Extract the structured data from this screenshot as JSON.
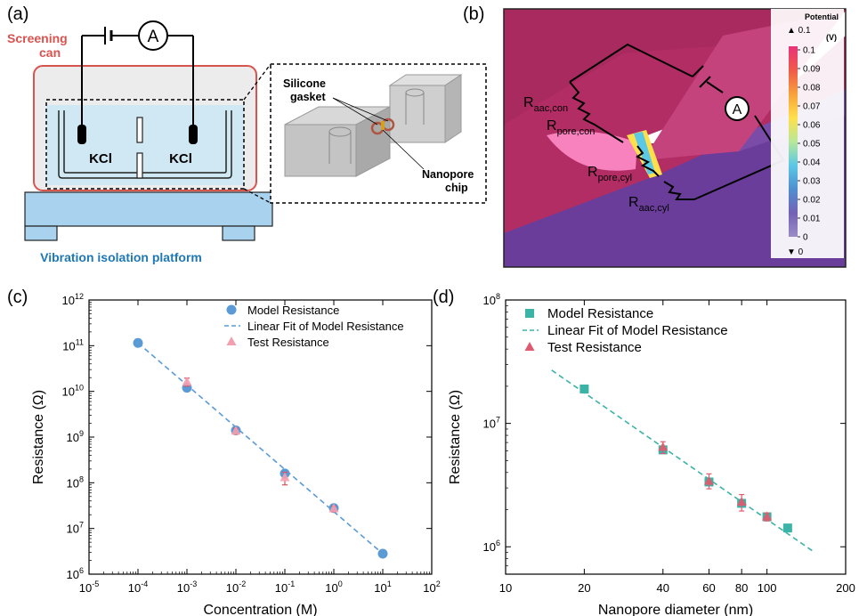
{
  "panels": {
    "a": {
      "label": "(a)",
      "can_label_1": "Screening",
      "can_label_2": "can",
      "ammeter": "A",
      "electrolyte_left": "KCl",
      "electrolyte_right": "KCl",
      "gasket_label_1": "Silicone",
      "gasket_label_2": "gasket",
      "chip_label_1": "Nanopore",
      "chip_label_2": "chip",
      "platform_label": "Vibration isolation platform",
      "colors": {
        "can": "#d9534f",
        "bath": "#cfe8f3",
        "platform": "#a9d2ee",
        "platform_text": "#1f77b4"
      }
    },
    "b": {
      "label": "(b)",
      "ammeter": "A",
      "resistors": [
        {
          "main": "R",
          "sub": "aac,con"
        },
        {
          "main": "R",
          "sub": "pore,con"
        },
        {
          "main": "R",
          "sub": "pore,cyl"
        },
        {
          "main": "R",
          "sub": "aac,cyl"
        }
      ],
      "colorbar": {
        "title_1": "Potential",
        "title_2": "(V)",
        "max_marker": "▲ 0.1",
        "min_marker": "▼ 0",
        "ticks": [
          "0.1",
          "0.09",
          "0.08",
          "0.07",
          "0.06",
          "0.05",
          "0.04",
          "0.03",
          "0.02",
          "0.01",
          "0"
        ],
        "gradient": [
          "#e8337a",
          "#f05a4a",
          "#f7a13a",
          "#ffe04a",
          "#b9e89a",
          "#5bc8e6",
          "#4f8fd0",
          "#7461b5",
          "#9b8cc6"
        ]
      },
      "colors": {
        "upper": "#b32d65",
        "lower": "#6a3d9a",
        "wedge": "#c4437c",
        "tip": "#ff8cc8"
      }
    }
  },
  "chart_data": [
    {
      "panel": "(c)",
      "type": "scatter",
      "xlabel": "Concentration (M)",
      "ylabel": "Resistance (Ω)",
      "xscale": "log",
      "yscale": "log",
      "xlim": [
        1e-05,
        100
      ],
      "ylim": [
        1000000.0,
        1000000000000.0
      ],
      "x_tick_labels": [
        {
          "base": "10",
          "exp": "-5"
        },
        {
          "base": "10",
          "exp": "-4"
        },
        {
          "base": "10",
          "exp": "-3"
        },
        {
          "base": "10",
          "exp": "-2"
        },
        {
          "base": "10",
          "exp": "-1"
        },
        {
          "base": "10",
          "exp": "0"
        },
        {
          "base": "10",
          "exp": "1"
        },
        {
          "base": "10",
          "exp": "2"
        }
      ],
      "y_tick_labels": [
        {
          "base": "10",
          "exp": "6"
        },
        {
          "base": "10",
          "exp": "7"
        },
        {
          "base": "10",
          "exp": "8"
        },
        {
          "base": "10",
          "exp": "9"
        },
        {
          "base": "10",
          "exp": "10"
        },
        {
          "base": "10",
          "exp": "11"
        },
        {
          "base": "10",
          "exp": "12"
        }
      ],
      "legend_position": "top-right",
      "series": [
        {
          "name": "Model Resistance",
          "marker": "circle",
          "color": "#5b9bd5",
          "x": [
            0.0001,
            0.001,
            0.01,
            0.1,
            1,
            10
          ],
          "y": [
            115000000000.0,
            12000000000.0,
            1400000000.0,
            160000000.0,
            28000000.0,
            2800000.0
          ]
        },
        {
          "name": "Linear Fit of Model Resistance",
          "style": "dashed",
          "color": "#5b9bd5",
          "x": [
            0.0001,
            10
          ],
          "y": [
            115000000000.0,
            2800000.0
          ]
        },
        {
          "name": "Test Resistance",
          "marker": "triangle",
          "color": "#f2a0b0",
          "error_color": "#e05060",
          "x": [
            0.001,
            0.01,
            0.1,
            1
          ],
          "y": [
            16000000000.0,
            1350000000.0,
            130000000.0,
            27000000.0
          ],
          "err_low": [
            13000000000.0,
            1150000000.0,
            90000000.0,
            23000000.0
          ],
          "err_high": [
            19500000000.0,
            1550000000.0,
            170000000.0,
            31000000.0
          ]
        }
      ]
    },
    {
      "panel": "(d)",
      "type": "scatter",
      "xlabel": "Nanopore diameter (nm)",
      "ylabel": "Resistance (Ω)",
      "xscale": "log",
      "yscale": "log",
      "xlim": [
        10,
        200
      ],
      "ylim": [
        600000,
        100000000
      ],
      "x_ticks": [
        10,
        20,
        40,
        60,
        80,
        100,
        200
      ],
      "x_tick_labels": [
        "10",
        "20",
        "40",
        "60",
        "80",
        "100",
        "200"
      ],
      "y_ticks": [
        1000000,
        10000000,
        100000000
      ],
      "y_tick_labels": [
        {
          "base": "10",
          "exp": "6"
        },
        {
          "base": "10",
          "exp": "7"
        },
        {
          "base": "10",
          "exp": "8"
        }
      ],
      "legend_position": "top-left",
      "series": [
        {
          "name": "Model Resistance",
          "marker": "square",
          "color": "#3bb3a6",
          "x": [
            20,
            40,
            60,
            80,
            100,
            120
          ],
          "y": [
            19000000.0,
            6100000.0,
            3350000.0,
            2250000.0,
            1750000.0,
            1420000.0
          ]
        },
        {
          "name": "Linear Fit of Model Resistance",
          "style": "dashed",
          "color": "#3bb3a6",
          "x": [
            15,
            150
          ],
          "y": [
            27000000.0,
            920000.0
          ]
        },
        {
          "name": "Test Resistance",
          "marker": "triangle",
          "color": "#e05a6e",
          "x": [
            40,
            60,
            80,
            100
          ],
          "y": [
            6400000.0,
            3400000.0,
            2300000.0,
            1750000.0
          ],
          "err_low": [
            5700000.0,
            2950000.0,
            1950000.0,
            1620000.0
          ],
          "err_high": [
            7100000.0,
            3900000.0,
            2650000.0,
            1880000.0
          ]
        }
      ]
    }
  ]
}
